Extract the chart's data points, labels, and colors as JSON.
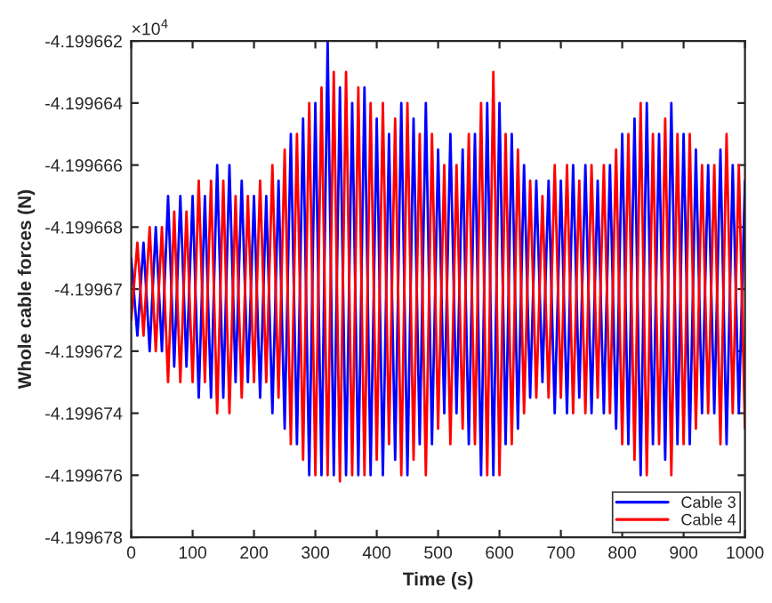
{
  "chart_data": {
    "type": "line",
    "xlabel": "Time (s)",
    "ylabel": "Whole cable forces (N)",
    "annotations": [
      "×10$^{4}$"
    ],
    "x": [
      0,
      10,
      20,
      30,
      40,
      50,
      60,
      70,
      80,
      90,
      100,
      110,
      120,
      130,
      140,
      150,
      160,
      170,
      180,
      190,
      200,
      210,
      220,
      230,
      240,
      250,
      260,
      270,
      280,
      290,
      300,
      310,
      320,
      330,
      340,
      350,
      360,
      370,
      380,
      390,
      400,
      410,
      420,
      430,
      440,
      450,
      460,
      470,
      480,
      490,
      500,
      510,
      520,
      530,
      540,
      550,
      560,
      570,
      580,
      590,
      600,
      610,
      620,
      630,
      640,
      650,
      660,
      670,
      680,
      690,
      700,
      710,
      720,
      730,
      740,
      750,
      760,
      770,
      780,
      790,
      800,
      810,
      820,
      830,
      840,
      850,
      860,
      870,
      880,
      890,
      900,
      910,
      920,
      930,
      940,
      950,
      960,
      970,
      980,
      990,
      1000
    ],
    "series": [
      {
        "name": "Cable 3",
        "color": "#0000ff",
        "values": [
          -4.199669,
          -4.1996715,
          -4.1996685,
          -4.199672,
          -4.199668,
          -4.199672,
          -4.199667,
          -4.1996725,
          -4.199667,
          -4.1996725,
          -4.199667,
          -4.1996735,
          -4.199667,
          -4.1996735,
          -4.199666,
          -4.1996735,
          -4.199666,
          -4.199673,
          -4.1996665,
          -4.199673,
          -4.199667,
          -4.1996735,
          -4.199667,
          -4.199674,
          -4.1996665,
          -4.1996745,
          -4.199665,
          -4.199675,
          -4.1996645,
          -4.199676,
          -4.199664,
          -4.199676,
          -4.199662,
          -4.199676,
          -4.1996635,
          -4.199676,
          -4.199664,
          -4.199676,
          -4.1996635,
          -4.199676,
          -4.1996645,
          -4.199676,
          -4.199665,
          -4.1996755,
          -4.199664,
          -4.199676,
          -4.1996645,
          -4.199675,
          -4.199664,
          -4.199675,
          -4.1996655,
          -4.199674,
          -4.199665,
          -4.199674,
          -4.1996655,
          -4.199675,
          -4.199665,
          -4.199676,
          -4.199664,
          -4.199676,
          -4.199664,
          -4.199675,
          -4.199665,
          -4.1996745,
          -4.199666,
          -4.1996735,
          -4.1996665,
          -4.199673,
          -4.1996665,
          -4.199674,
          -4.1996665,
          -4.199674,
          -4.199666,
          -4.1996735,
          -4.199666,
          -4.199674,
          -4.1996665,
          -4.199674,
          -4.199666,
          -4.1996745,
          -4.199665,
          -4.199675,
          -4.1996645,
          -4.199676,
          -4.199664,
          -4.199675,
          -4.199665,
          -4.1996755,
          -4.199664,
          -4.199675,
          -4.199665,
          -4.199675,
          -4.1996655,
          -4.199674,
          -4.199666,
          -4.199674,
          -4.1996655,
          -4.199675,
          -4.199666,
          -4.199674,
          -4.1996665
        ]
      },
      {
        "name": "Cable 4",
        "color": "#ff0000",
        "values": [
          -4.199671,
          -4.1996685,
          -4.1996715,
          -4.199668,
          -4.199672,
          -4.199668,
          -4.199673,
          -4.1996675,
          -4.199673,
          -4.1996675,
          -4.199673,
          -4.1996665,
          -4.199673,
          -4.1996665,
          -4.199674,
          -4.1996665,
          -4.199674,
          -4.199667,
          -4.1996735,
          -4.199667,
          -4.199673,
          -4.1996665,
          -4.199673,
          -4.199666,
          -4.1996735,
          -4.1996655,
          -4.199675,
          -4.199665,
          -4.1996755,
          -4.199664,
          -4.199676,
          -4.1996635,
          -4.199676,
          -4.199663,
          -4.1996762,
          -4.199663,
          -4.199676,
          -4.1996635,
          -4.199676,
          -4.199664,
          -4.1996755,
          -4.199664,
          -4.199675,
          -4.1996645,
          -4.199676,
          -4.199664,
          -4.1996755,
          -4.199665,
          -4.199676,
          -4.199665,
          -4.1996745,
          -4.199666,
          -4.199675,
          -4.199666,
          -4.1996745,
          -4.199665,
          -4.199675,
          -4.199664,
          -4.199676,
          -4.199663,
          -4.199676,
          -4.199665,
          -4.199675,
          -4.1996655,
          -4.199674,
          -4.1996665,
          -4.1996735,
          -4.199667,
          -4.1996735,
          -4.199666,
          -4.1996735,
          -4.199666,
          -4.199674,
          -4.1996665,
          -4.199674,
          -4.199666,
          -4.1996735,
          -4.199666,
          -4.199674,
          -4.1996655,
          -4.199675,
          -4.199665,
          -4.1996755,
          -4.199664,
          -4.199676,
          -4.199665,
          -4.199675,
          -4.1996645,
          -4.199676,
          -4.199665,
          -4.199675,
          -4.199665,
          -4.1996745,
          -4.199666,
          -4.199674,
          -4.199666,
          -4.199675,
          -4.199665,
          -4.199674,
          -4.199666,
          -4.1996745
        ]
      }
    ],
    "xlim": [
      0,
      1000
    ],
    "xticks": [
      0,
      100,
      200,
      300,
      400,
      500,
      600,
      700,
      800,
      900,
      1000
    ],
    "ylim": [
      -4.199678,
      -4.199662
    ],
    "yticks": [
      -4.199678,
      -4.199676,
      -4.199674,
      -4.199672,
      -4.19967,
      -4.199668,
      -4.199666,
      -4.199664,
      -4.199662
    ],
    "grid": false,
    "legend": "bottom right",
    "marker": "none",
    "line_style": "solid"
  }
}
